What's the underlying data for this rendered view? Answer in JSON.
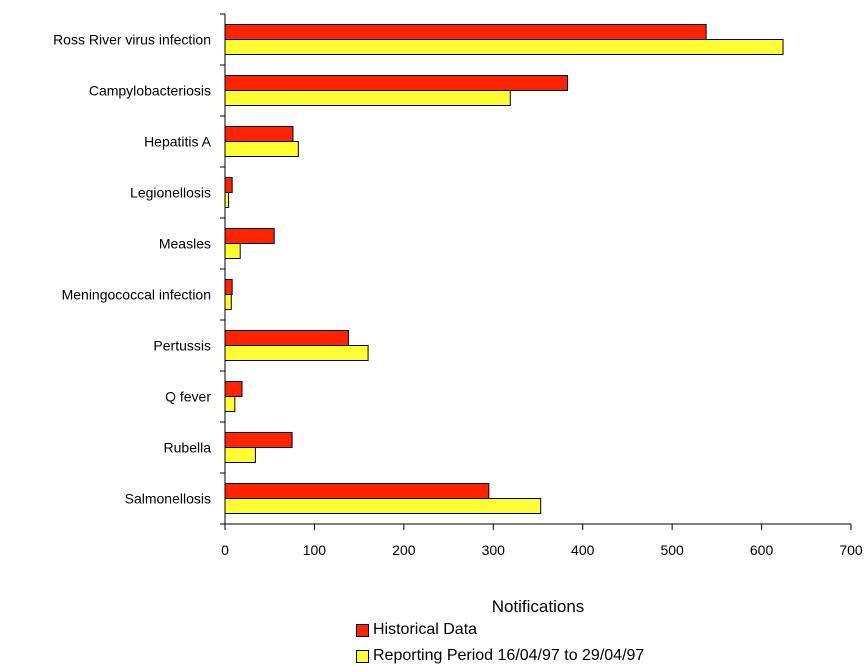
{
  "chart_data": {
    "type": "bar",
    "orientation": "horizontal",
    "categories": [
      "Ross River virus infection",
      "Campylobacteriosis",
      "Hepatitis A",
      "Legionellosis",
      "Measles",
      "Meningococcal infection",
      "Pertussis",
      "Q fever",
      "Rubella",
      "Salmonellosis"
    ],
    "series": [
      {
        "name": "Historical Data",
        "color": "#ff2400",
        "values": [
          538,
          383,
          76,
          8,
          55,
          8,
          138,
          19,
          75,
          295
        ]
      },
      {
        "name": "Reporting Period 16/04/97 to 29/04/97",
        "color": "#ffff33",
        "values": [
          624,
          319,
          82,
          4,
          17,
          7,
          160,
          11,
          34,
          353
        ]
      }
    ],
    "xlabel": "Notifications",
    "xlim": [
      0,
      700
    ],
    "xticks": [
      0,
      100,
      200,
      300,
      400,
      500,
      600,
      700
    ],
    "grid": false,
    "legend_position": "bottom"
  }
}
